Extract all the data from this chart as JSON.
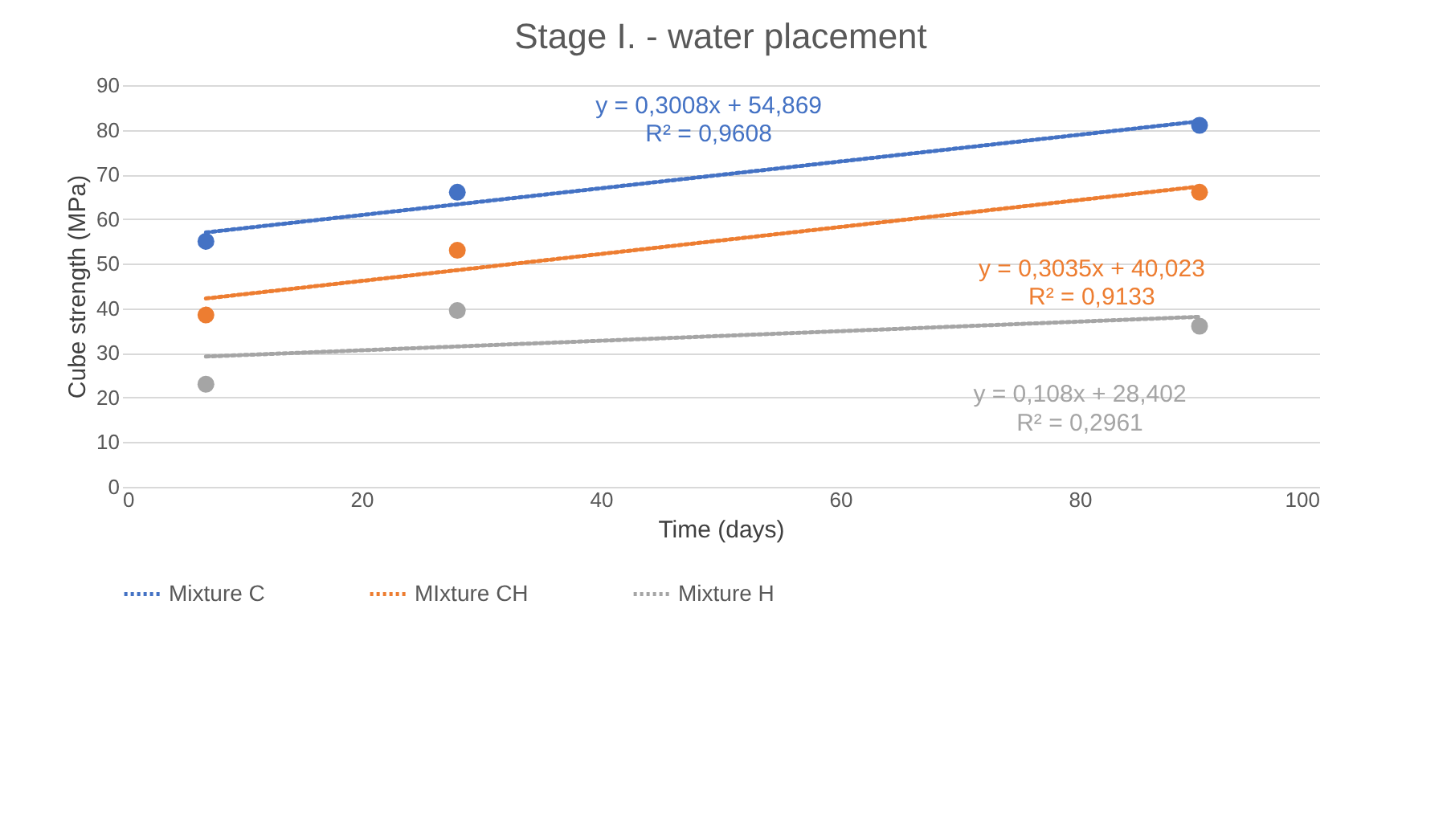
{
  "chart_data": {
    "type": "scatter",
    "title": "Stage I. - water placement",
    "xlabel": "Time (days)",
    "ylabel": "Cube strength (MPa)",
    "xlim": [
      0,
      100
    ],
    "xticks": [
      0,
      20,
      40,
      60,
      80,
      100
    ],
    "ylim": [
      0,
      90
    ],
    "yticks": [
      0,
      10,
      20,
      30,
      40,
      50,
      60,
      70,
      80,
      90
    ],
    "grid": "y",
    "legend": "bottom",
    "marker": "circle",
    "series": [
      {
        "color": "#4472c4",
        "x": [
          7,
          28,
          90
        ],
        "values": [
          55,
          66,
          81
        ]
      },
      {
        "color": "#ed7d31",
        "x": [
          7,
          28,
          90
        ],
        "values": [
          38.5,
          53,
          66
        ]
      },
      {
        "color": "#a5a5a5",
        "x": [
          7,
          28,
          90
        ],
        "values": [
          23,
          39.5,
          36
        ]
      },
      {
        "type": "line",
        "name": "Mixture C",
        "color": "#4472c4",
        "line_style": "dotted",
        "marker": "none",
        "x": [
          7,
          90
        ],
        "values": [
          57.0,
          81.9
        ]
      },
      {
        "type": "line",
        "name": "MIxture CH",
        "color": "#ed7d31",
        "line_style": "dotted",
        "marker": "none",
        "x": [
          7,
          90
        ],
        "values": [
          42.2,
          67.3
        ]
      },
      {
        "type": "line",
        "name": "Mixture H",
        "color": "#a5a5a5",
        "line_style": "dotted",
        "marker": "none",
        "x": [
          7,
          90
        ],
        "values": [
          29.2,
          38.1
        ]
      }
    ],
    "annotations": [
      "y = 0,3008x + 54,869",
      "R² = 0,9608",
      "y = 0,3035x + 40,023",
      "R² = 0,9133",
      "y = 0,108x + 28,402",
      "R² = 0,2961"
    ]
  }
}
